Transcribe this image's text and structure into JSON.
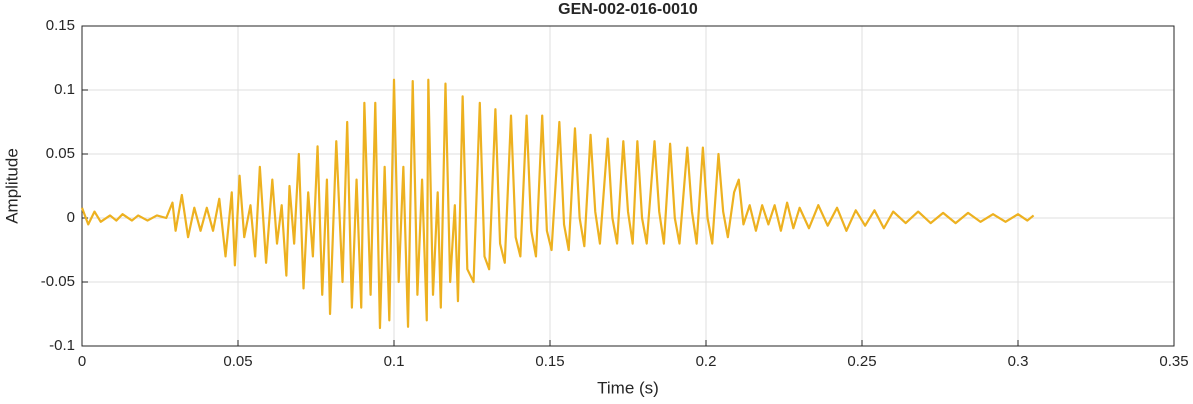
{
  "chart_data": {
    "type": "line",
    "title": "GEN-002-016-0010",
    "x_label": "Time (s)",
    "y_label": "Amplitude",
    "xlim": [
      0,
      0.35
    ],
    "xticks": [
      0,
      0.05,
      0.1,
      0.15,
      0.2,
      0.25,
      0.3,
      0.35
    ],
    "ylim": [
      -0.1,
      0.15
    ],
    "yticks": [
      -0.1,
      -0.05,
      0,
      0.05,
      0.1,
      0.15
    ],
    "grid": true,
    "series": [
      {
        "color": "#EDB120",
        "x": [
          0,
          0.002,
          0.004,
          0.006,
          0.009,
          0.011,
          0.013,
          0.016,
          0.018,
          0.021,
          0.024,
          0.027,
          0.029,
          0.03,
          0.032,
          0.034,
          0.036,
          0.038,
          0.04,
          0.042,
          0.044,
          0.046,
          0.048,
          0.049,
          0.0505,
          0.052,
          0.054,
          0.0555,
          0.057,
          0.059,
          0.061,
          0.0625,
          0.064,
          0.0655,
          0.0665,
          0.068,
          0.0695,
          0.071,
          0.0725,
          0.074,
          0.0755,
          0.077,
          0.0785,
          0.0795,
          0.0815,
          0.0835,
          0.085,
          0.0865,
          0.088,
          0.0895,
          0.0905,
          0.0925,
          0.094,
          0.0955,
          0.097,
          0.0985,
          0.1,
          0.1015,
          0.103,
          0.1045,
          0.106,
          0.1075,
          0.109,
          0.1105,
          0.111,
          0.1125,
          0.114,
          0.115,
          0.1165,
          0.118,
          0.1195,
          0.1205,
          0.122,
          0.1235,
          0.1255,
          0.1275,
          0.129,
          0.1305,
          0.1325,
          0.134,
          0.1355,
          0.1375,
          0.139,
          0.1405,
          0.1425,
          0.144,
          0.1455,
          0.1475,
          0.149,
          0.1505,
          0.153,
          0.1545,
          0.156,
          0.158,
          0.1595,
          0.161,
          0.163,
          0.1645,
          0.166,
          0.1685,
          0.17,
          0.1715,
          0.1735,
          0.175,
          0.1765,
          0.178,
          0.1795,
          0.181,
          0.1835,
          0.185,
          0.1865,
          0.1885,
          0.19,
          0.1915,
          0.194,
          0.1955,
          0.197,
          0.199,
          0.2005,
          0.202,
          0.204,
          0.2055,
          0.207,
          0.209,
          0.2105,
          0.212,
          0.214,
          0.216,
          0.218,
          0.22,
          0.222,
          0.224,
          0.226,
          0.228,
          0.23,
          0.233,
          0.236,
          0.239,
          0.242,
          0.245,
          0.248,
          0.251,
          0.254,
          0.257,
          0.26,
          0.264,
          0.268,
          0.272,
          0.276,
          0.28,
          0.284,
          0.288,
          0.292,
          0.296,
          0.3,
          0.303,
          0.305
        ],
        "values": [
          0.008,
          -0.005,
          0.005,
          -0.003,
          0.002,
          -0.002,
          0.003,
          -0.002,
          0.002,
          -0.002,
          0.002,
          0,
          0.012,
          -0.01,
          0.018,
          -0.015,
          0.008,
          -0.01,
          0.008,
          -0.01,
          0.015,
          -0.03,
          0.02,
          -0.037,
          0.033,
          -0.015,
          0.01,
          -0.03,
          0.04,
          -0.035,
          0.03,
          -0.02,
          0.01,
          -0.045,
          0.025,
          -0.02,
          0.05,
          -0.055,
          0.02,
          -0.03,
          0.056,
          -0.06,
          0.03,
          -0.075,
          0.06,
          -0.05,
          0.075,
          -0.07,
          0.03,
          -0.07,
          0.09,
          -0.06,
          0.09,
          -0.086,
          0.04,
          -0.08,
          0.108,
          -0.05,
          0.04,
          -0.085,
          0.107,
          -0.06,
          0.03,
          -0.08,
          0.108,
          -0.06,
          0.02,
          -0.07,
          0.105,
          -0.05,
          0.01,
          -0.065,
          0.095,
          -0.04,
          -0.05,
          0.09,
          -0.03,
          -0.04,
          0.085,
          -0.02,
          -0.035,
          0.08,
          -0.015,
          -0.03,
          0.08,
          -0.01,
          -0.03,
          0.08,
          -0.01,
          -0.025,
          0.075,
          -0.005,
          -0.025,
          0.07,
          0,
          -0.022,
          0.065,
          0.005,
          -0.02,
          0.062,
          0,
          -0.02,
          0.06,
          0.005,
          -0.02,
          0.06,
          0,
          -0.02,
          0.06,
          0.005,
          -0.02,
          0.058,
          0,
          -0.02,
          0.055,
          0.005,
          -0.02,
          0.055,
          0,
          -0.02,
          0.05,
          0.005,
          -0.015,
          0.02,
          0.03,
          -0.005,
          0.01,
          -0.01,
          0.01,
          -0.005,
          0.01,
          -0.01,
          0.012,
          -0.008,
          0.008,
          -0.008,
          0.01,
          -0.006,
          0.008,
          -0.01,
          0.006,
          -0.006,
          0.006,
          -0.008,
          0.005,
          -0.004,
          0.005,
          -0.004,
          0.004,
          -0.004,
          0.004,
          -0.003,
          0.003,
          -0.003,
          0.003,
          -0.002,
          0.002
        ]
      }
    ]
  }
}
